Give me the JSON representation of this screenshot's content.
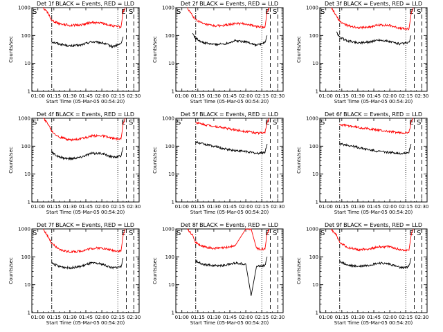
{
  "figure": {
    "start_time_label": "Start Time (05-Mar-05 00:54:20)",
    "y_label": "Counts/sec",
    "marker_labels": {
      "E": "E",
      "S": "S"
    },
    "colors": {
      "events": "#000000",
      "lld": "#ff0000"
    }
  },
  "chart_data": [
    {
      "type": "line",
      "title": "Det 1f BLACK = Events, RED = LLD",
      "xlabel": "Start Time (05-Mar-05 00:54:20)",
      "ylabel": "Counts/sec",
      "xlim": [
        "00:54:20",
        "02:35"
      ],
      "ylim": [
        1,
        1000
      ],
      "yscale": "log",
      "x_ticks": [
        "01:00",
        "01:15",
        "01:30",
        "01:45",
        "02:00",
        "02:15",
        "02:30"
      ],
      "y_ticks": [
        "1",
        "10",
        "100",
        "1000"
      ],
      "markers": [
        {
          "label": "",
          "style": "dash-dot",
          "x": "01:13"
        },
        {
          "label": "",
          "style": "dotted",
          "x": "02:15"
        },
        {
          "label": "E",
          "style": "dashed",
          "x": "02:23"
        },
        {
          "label": "S",
          "style": "dashed",
          "x": "02:30"
        }
      ],
      "series": [
        {
          "name": "Events",
          "color": "#000000",
          "x": [
            "01:05",
            "01:10",
            "01:13",
            "01:20",
            "01:30",
            "01:40",
            "01:50",
            "02:00",
            "02:10",
            "02:18",
            "02:20"
          ],
          "values": [
            null,
            null,
            60,
            50,
            42,
            45,
            60,
            55,
            40,
            50,
            90
          ]
        },
        {
          "name": "LLD",
          "color": "#ff0000",
          "x": [
            "01:05",
            "01:10",
            "01:13",
            "01:20",
            "01:30",
            "01:40",
            "01:50",
            "02:00",
            "02:10",
            "02:18",
            "02:20",
            "02:22"
          ],
          "values": [
            1000,
            600,
            350,
            270,
            230,
            240,
            290,
            280,
            220,
            200,
            700,
            1000
          ]
        }
      ]
    },
    {
      "type": "line",
      "title": "Det 2f BLACK = Events, RED = LLD",
      "xlabel": "Start Time (05-Mar-05 00:54:20)",
      "ylabel": "Counts/sec",
      "xlim": [
        "00:54:20",
        "02:35"
      ],
      "ylim": [
        1,
        1000
      ],
      "yscale": "log",
      "x_ticks": [
        "01:00",
        "01:15",
        "01:30",
        "01:45",
        "02:00",
        "02:15",
        "02:30"
      ],
      "y_ticks": [
        "1",
        "10",
        "100",
        "1000"
      ],
      "markers": [
        {
          "label": "",
          "style": "dash-dot",
          "x": "01:13"
        },
        {
          "label": "",
          "style": "dotted",
          "x": "02:15"
        },
        {
          "label": "E",
          "style": "dashed",
          "x": "02:23"
        },
        {
          "label": "S",
          "style": "dashed",
          "x": "02:30"
        }
      ],
      "series": [
        {
          "name": "Events",
          "color": "#000000",
          "x": [
            "01:05",
            "01:10",
            "01:13",
            "01:20",
            "01:30",
            "01:40",
            "01:50",
            "02:00",
            "02:10",
            "02:18",
            "02:20"
          ],
          "values": [
            null,
            120,
            80,
            55,
            48,
            50,
            65,
            60,
            45,
            55,
            100
          ]
        },
        {
          "name": "LLD",
          "color": "#ff0000",
          "x": [
            "01:05",
            "01:10",
            "01:13",
            "01:20",
            "01:30",
            "01:40",
            "01:50",
            "02:00",
            "02:10",
            "02:18",
            "02:20",
            "02:22"
          ],
          "values": [
            1000,
            500,
            380,
            260,
            220,
            230,
            270,
            260,
            210,
            200,
            700,
            1000
          ]
        }
      ]
    },
    {
      "type": "line",
      "title": "Det 3f BLACK = Events, RED = LLD",
      "xlabel": "Start Time (05-Mar-05 00:54:20)",
      "ylabel": "Counts/sec",
      "xlim": [
        "00:54:20",
        "02:35"
      ],
      "ylim": [
        1,
        1000
      ],
      "yscale": "log",
      "x_ticks": [
        "01:00",
        "01:15",
        "01:30",
        "01:45",
        "02:00",
        "02:15",
        "02:30"
      ],
      "y_ticks": [
        "1",
        "10",
        "100",
        "1000"
      ],
      "markers": [
        {
          "label": "",
          "style": "dash-dot",
          "x": "01:13"
        },
        {
          "label": "",
          "style": "dotted",
          "x": "02:15"
        },
        {
          "label": "E",
          "style": "dashed",
          "x": "02:23"
        },
        {
          "label": "S",
          "style": "dashed",
          "x": "02:30"
        }
      ],
      "series": [
        {
          "name": "Events",
          "color": "#000000",
          "x": [
            "01:05",
            "01:10",
            "01:13",
            "01:20",
            "01:30",
            "01:40",
            "01:50",
            "02:00",
            "02:10",
            "02:18",
            "02:20"
          ],
          "values": [
            null,
            130,
            85,
            65,
            55,
            58,
            70,
            60,
            50,
            55,
            100
          ]
        },
        {
          "name": "LLD",
          "color": "#ff0000",
          "x": [
            "01:05",
            "01:10",
            "01:13",
            "01:20",
            "01:30",
            "01:40",
            "01:50",
            "02:00",
            "02:10",
            "02:18",
            "02:20",
            "02:22"
          ],
          "values": [
            1000,
            500,
            320,
            230,
            190,
            200,
            240,
            230,
            180,
            170,
            600,
            1000
          ]
        }
      ]
    },
    {
      "type": "line",
      "title": "Det 4f BLACK = Events, RED = LLD",
      "xlabel": "Start Time (05-Mar-05 00:54:20)",
      "ylabel": "Counts/sec",
      "xlim": [
        "00:54:20",
        "02:35"
      ],
      "ylim": [
        1,
        1000
      ],
      "yscale": "log",
      "x_ticks": [
        "01:00",
        "01:15",
        "01:30",
        "01:45",
        "02:00",
        "02:15",
        "02:30"
      ],
      "y_ticks": [
        "1",
        "10",
        "100",
        "1000"
      ],
      "markers": [
        {
          "label": "",
          "style": "dash-dot",
          "x": "01:13"
        },
        {
          "label": "",
          "style": "dotted",
          "x": "02:15"
        },
        {
          "label": "E",
          "style": "dashed",
          "x": "02:23"
        },
        {
          "label": "S",
          "style": "dashed",
          "x": "02:30"
        }
      ],
      "series": [
        {
          "name": "Events",
          "color": "#000000",
          "x": [
            "01:05",
            "01:10",
            "01:13",
            "01:20",
            "01:30",
            "01:40",
            "01:50",
            "02:00",
            "02:10",
            "02:18",
            "02:20"
          ],
          "values": [
            null,
            null,
            60,
            40,
            35,
            40,
            55,
            55,
            40,
            45,
            90
          ]
        },
        {
          "name": "LLD",
          "color": "#ff0000",
          "x": [
            "01:05",
            "01:10",
            "01:13",
            "01:20",
            "01:30",
            "01:40",
            "01:50",
            "02:00",
            "02:10",
            "02:18",
            "02:20",
            "02:22"
          ],
          "values": [
            1000,
            600,
            350,
            210,
            170,
            180,
            230,
            240,
            190,
            180,
            600,
            1000
          ]
        }
      ]
    },
    {
      "type": "line",
      "title": "Det 5f BLACK = Events, RED = LLD",
      "xlabel": "Start Time (05-Mar-05 00:54:20)",
      "ylabel": "Counts/sec",
      "xlim": [
        "00:54:20",
        "02:35"
      ],
      "ylim": [
        1,
        1000
      ],
      "yscale": "log",
      "x_ticks": [
        "01:00",
        "01:15",
        "01:30",
        "01:45",
        "02:00",
        "02:15",
        "02:30"
      ],
      "y_ticks": [
        "1",
        "10",
        "100",
        "1000"
      ],
      "markers": [
        {
          "label": "",
          "style": "dash-dot",
          "x": "01:13"
        },
        {
          "label": "",
          "style": "dotted",
          "x": "02:15"
        },
        {
          "label": "E",
          "style": "dashed",
          "x": "02:23"
        },
        {
          "label": "S",
          "style": "dashed",
          "x": "02:30"
        }
      ],
      "series": [
        {
          "name": "Events",
          "color": "#000000",
          "x": [
            "01:05",
            "01:10",
            "01:13",
            "01:20",
            "01:30",
            "01:40",
            "01:50",
            "02:00",
            "02:10",
            "02:18",
            "02:20"
          ],
          "values": [
            null,
            null,
            140,
            120,
            100,
            80,
            70,
            65,
            55,
            60,
            120
          ]
        },
        {
          "name": "LLD",
          "color": "#ff0000",
          "x": [
            "01:05",
            "01:10",
            "01:13",
            "01:20",
            "01:30",
            "01:40",
            "01:50",
            "02:00",
            "02:10",
            "02:18",
            "02:20",
            "02:22"
          ],
          "values": [
            null,
            null,
            700,
            600,
            520,
            450,
            380,
            340,
            300,
            300,
            700,
            1000
          ]
        }
      ]
    },
    {
      "type": "line",
      "title": "Det 6f BLACK = Events, RED = LLD",
      "xlabel": "Start Time (05-Mar-05 00:54:20)",
      "ylabel": "Counts/sec",
      "xlim": [
        "00:54:20",
        "02:35"
      ],
      "ylim": [
        1,
        1000
      ],
      "yscale": "log",
      "x_ticks": [
        "01:00",
        "01:15",
        "01:30",
        "01:45",
        "02:00",
        "02:15",
        "02:30"
      ],
      "y_ticks": [
        "1",
        "10",
        "100",
        "1000"
      ],
      "markers": [
        {
          "label": "",
          "style": "dash-dot",
          "x": "01:13"
        },
        {
          "label": "",
          "style": "dotted",
          "x": "02:15"
        },
        {
          "label": "E",
          "style": "dashed",
          "x": "02:23"
        },
        {
          "label": "S",
          "style": "dashed",
          "x": "02:30"
        }
      ],
      "series": [
        {
          "name": "Events",
          "color": "#000000",
          "x": [
            "01:05",
            "01:10",
            "01:13",
            "01:20",
            "01:30",
            "01:40",
            "01:50",
            "02:00",
            "02:10",
            "02:18",
            "02:20"
          ],
          "values": [
            null,
            null,
            120,
            110,
            90,
            75,
            65,
            60,
            55,
            60,
            120
          ]
        },
        {
          "name": "LLD",
          "color": "#ff0000",
          "x": [
            "01:05",
            "01:10",
            "01:13",
            "01:20",
            "01:30",
            "01:40",
            "01:50",
            "02:00",
            "02:10",
            "02:18",
            "02:20",
            "02:22"
          ],
          "values": [
            null,
            null,
            600,
            550,
            470,
            420,
            370,
            330,
            300,
            300,
            700,
            1000
          ]
        }
      ]
    },
    {
      "type": "line",
      "title": "Det 7f BLACK = Events, RED = LLD",
      "xlabel": "Start Time (05-Mar-05 00:54:20)",
      "ylabel": "Counts/sec",
      "xlim": [
        "00:54:20",
        "02:35"
      ],
      "ylim": [
        1,
        1000
      ],
      "yscale": "log",
      "x_ticks": [
        "01:00",
        "01:15",
        "01:30",
        "01:45",
        "02:00",
        "02:15",
        "02:30"
      ],
      "y_ticks": [
        "1",
        "10",
        "100",
        "1000"
      ],
      "markers": [
        {
          "label": "",
          "style": "dash-dot",
          "x": "01:13"
        },
        {
          "label": "",
          "style": "dotted",
          "x": "02:15"
        },
        {
          "label": "E",
          "style": "dashed",
          "x": "02:23"
        },
        {
          "label": "S",
          "style": "dashed",
          "x": "02:30"
        }
      ],
      "series": [
        {
          "name": "Events",
          "color": "#000000",
          "x": [
            "01:05",
            "01:10",
            "01:13",
            "01:20",
            "01:30",
            "01:40",
            "01:50",
            "02:00",
            "02:10",
            "02:18",
            "02:20"
          ],
          "values": [
            null,
            null,
            60,
            45,
            40,
            45,
            60,
            55,
            40,
            45,
            90
          ]
        },
        {
          "name": "LLD",
          "color": "#ff0000",
          "x": [
            "01:05",
            "01:10",
            "01:13",
            "01:20",
            "01:30",
            "01:40",
            "01:50",
            "02:00",
            "02:10",
            "02:18",
            "02:20",
            "02:22"
          ],
          "values": [
            1000,
            500,
            300,
            180,
            150,
            160,
            200,
            210,
            170,
            160,
            600,
            1000
          ]
        }
      ]
    },
    {
      "type": "line",
      "title": "Det 8f BLACK = Events, RED = LLD",
      "xlabel": "Start Time (05-Mar-05 00:54:20)",
      "ylabel": "Counts/sec",
      "xlim": [
        "00:54:20",
        "02:35"
      ],
      "ylim": [
        1,
        1000
      ],
      "yscale": "log",
      "x_ticks": [
        "01:00",
        "01:15",
        "01:30",
        "01:45",
        "02:00",
        "02:15",
        "02:30"
      ],
      "y_ticks": [
        "1",
        "10",
        "100",
        "1000"
      ],
      "markers": [
        {
          "label": "",
          "style": "dash-dot",
          "x": "01:13"
        },
        {
          "label": "",
          "style": "dotted",
          "x": "02:15"
        },
        {
          "label": "E",
          "style": "dashed",
          "x": "02:23"
        },
        {
          "label": "S",
          "style": "dashed",
          "x": "02:30"
        }
      ],
      "series": [
        {
          "name": "Events",
          "color": "#000000",
          "x": [
            "01:05",
            "01:10",
            "01:13",
            "01:20",
            "01:30",
            "01:40",
            "01:50",
            "02:00",
            "02:05",
            "02:10",
            "02:18",
            "02:20"
          ],
          "values": [
            null,
            null,
            70,
            55,
            48,
            50,
            60,
            55,
            4,
            45,
            50,
            100
          ]
        },
        {
          "name": "LLD",
          "color": "#ff0000",
          "x": [
            "01:05",
            "01:10",
            "01:13",
            "01:20",
            "01:30",
            "01:40",
            "01:50",
            "02:00",
            "02:05",
            "02:10",
            "02:18",
            "02:20",
            "02:22"
          ],
          "values": [
            1000,
            600,
            330,
            230,
            200,
            210,
            250,
            1000,
            1000,
            200,
            190,
            700,
            1000
          ]
        }
      ]
    },
    {
      "type": "line",
      "title": "Det 9f BLACK = Events, RED = LLD",
      "xlabel": "Start Time (05-Mar-05 00:54:20)",
      "ylabel": "Counts/sec",
      "xlim": [
        "00:54:20",
        "02:35"
      ],
      "ylim": [
        1,
        1000
      ],
      "yscale": "log",
      "x_ticks": [
        "01:00",
        "01:15",
        "01:30",
        "01:45",
        "02:00",
        "02:15",
        "02:30"
      ],
      "y_ticks": [
        "1",
        "10",
        "100",
        "1000"
      ],
      "markers": [
        {
          "label": "",
          "style": "dash-dot",
          "x": "01:13"
        },
        {
          "label": "",
          "style": "dotted",
          "x": "02:15"
        },
        {
          "label": "E",
          "style": "dashed",
          "x": "02:23"
        },
        {
          "label": "S",
          "style": "dashed",
          "x": "02:30"
        }
      ],
      "series": [
        {
          "name": "Events",
          "color": "#000000",
          "x": [
            "01:05",
            "01:10",
            "01:13",
            "01:20",
            "01:30",
            "01:40",
            "01:50",
            "02:00",
            "02:10",
            "02:18",
            "02:20"
          ],
          "values": [
            null,
            null,
            70,
            50,
            45,
            50,
            60,
            55,
            40,
            45,
            90
          ]
        },
        {
          "name": "LLD",
          "color": "#ff0000",
          "x": [
            "01:05",
            "01:10",
            "01:13",
            "01:20",
            "01:30",
            "01:40",
            "01:50",
            "02:00",
            "02:10",
            "02:18",
            "02:20",
            "02:22"
          ],
          "values": [
            1000,
            600,
            320,
            220,
            180,
            190,
            230,
            230,
            180,
            170,
            600,
            1000
          ]
        }
      ]
    }
  ]
}
